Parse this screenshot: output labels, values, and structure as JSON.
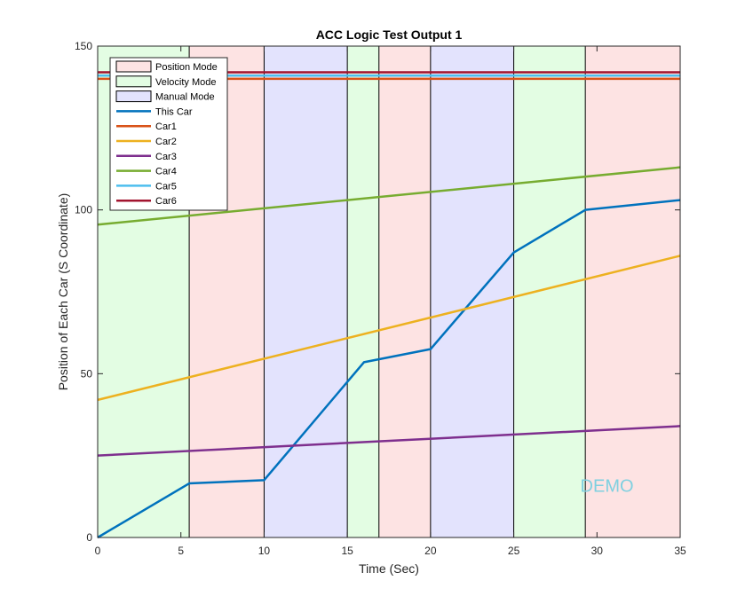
{
  "chart_data": {
    "type": "line",
    "title": "ACC Logic Test Output 1",
    "xlabel": "Time (Sec)",
    "ylabel": "Position of Each Car (S Coordinate)",
    "xlim": [
      0,
      35
    ],
    "ylim": [
      0,
      150
    ],
    "xticks": [
      0,
      5,
      10,
      15,
      20,
      25,
      30,
      35
    ],
    "yticks": [
      0,
      50,
      100,
      150
    ],
    "grid": false,
    "legend_position": "top-left",
    "mode_regions": [
      {
        "mode": "Velocity Mode",
        "start": 0,
        "end": 5.5
      },
      {
        "mode": "Position Mode",
        "start": 5.5,
        "end": 10
      },
      {
        "mode": "Manual Mode",
        "start": 10,
        "end": 15
      },
      {
        "mode": "Velocity Mode",
        "start": 15,
        "end": 16.9
      },
      {
        "mode": "Position Mode",
        "start": 16.9,
        "end": 20
      },
      {
        "mode": "Manual Mode",
        "start": 20,
        "end": 25
      },
      {
        "mode": "Velocity Mode",
        "start": 25,
        "end": 29.3
      },
      {
        "mode": "Position Mode",
        "start": 29.3,
        "end": 35
      }
    ],
    "mode_legend": [
      {
        "name": "Position Mode",
        "color": "#fde3e3"
      },
      {
        "name": "Velocity Mode",
        "color": "#e3fde3"
      },
      {
        "name": "Manual Mode",
        "color": "#e3e3fd"
      }
    ],
    "series": [
      {
        "name": "This Car",
        "color": "#0072bd",
        "x": [
          0,
          5.5,
          10,
          15,
          16,
          20,
          25,
          29.3,
          35
        ],
        "y": [
          0,
          16.5,
          17.5,
          47.5,
          53.5,
          57.5,
          87,
          100,
          103
        ]
      },
      {
        "name": "Car1",
        "color": "#d95319",
        "x": [
          0,
          35
        ],
        "y": [
          140,
          140
        ]
      },
      {
        "name": "Car2",
        "color": "#edb120",
        "x": [
          0,
          35
        ],
        "y": [
          42,
          86
        ]
      },
      {
        "name": "Car3",
        "color": "#7e2f8e",
        "x": [
          0,
          35
        ],
        "y": [
          25,
          34
        ]
      },
      {
        "name": "Car4",
        "color": "#77ac30",
        "x": [
          0,
          35
        ],
        "y": [
          95.5,
          113
        ]
      },
      {
        "name": "Car5",
        "color": "#4dbeee",
        "x": [
          0,
          35
        ],
        "y": [
          141,
          141
        ]
      },
      {
        "name": "Car6",
        "color": "#a2142f",
        "x": [
          0,
          35
        ],
        "y": [
          142,
          142
        ]
      }
    ],
    "annotations": [
      {
        "text": "DEMO",
        "x": 29,
        "y": 14
      }
    ]
  }
}
